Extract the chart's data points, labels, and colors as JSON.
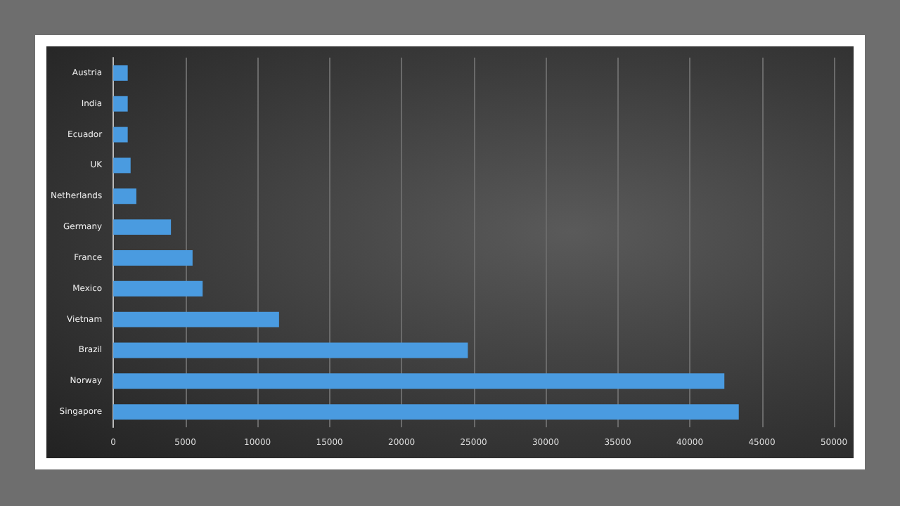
{
  "chart_data": {
    "type": "bar",
    "orientation": "horizontal",
    "categories": [
      "Austria",
      "India",
      "Ecuador",
      "UK",
      "Netherlands",
      "Germany",
      "France",
      "Mexico",
      "Vietnam",
      "Brazil",
      "Norway",
      "Singapore"
    ],
    "values": [
      1000,
      1000,
      1000,
      1200,
      1600,
      4000,
      5500,
      6200,
      11500,
      24600,
      42400,
      43400
    ],
    "color": "#4a9be0",
    "xlim": [
      0,
      50000
    ],
    "xticks": [
      0,
      5000,
      10000,
      15000,
      20000,
      25000,
      30000,
      35000,
      40000,
      45000,
      50000
    ],
    "grid": "x"
  }
}
